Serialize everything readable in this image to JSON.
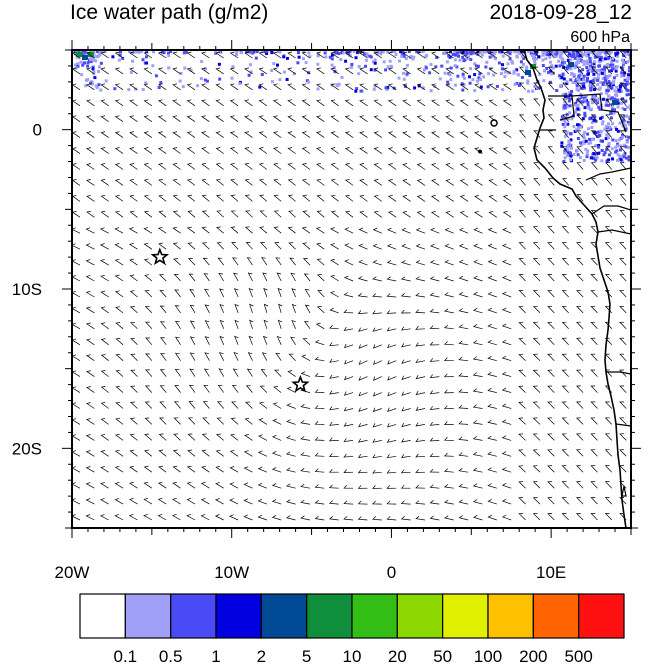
{
  "header": {
    "title": "Ice water path (g/m2)",
    "datetime": "2018-09-28_12",
    "level": "600 hPa"
  },
  "map": {
    "extent": {
      "lon": [
        -20,
        15
      ],
      "lat": [
        -25,
        5
      ]
    },
    "x_ticks": [
      {
        "lon": -20,
        "label": "20W"
      },
      {
        "lon": -10,
        "label": "10W"
      },
      {
        "lon": 0,
        "label": "0"
      },
      {
        "lon": 10,
        "label": "10E"
      }
    ],
    "y_ticks": [
      {
        "lat": 0,
        "label": "0"
      },
      {
        "lat": -10,
        "label": "10S"
      },
      {
        "lat": -20,
        "label": "20S"
      }
    ],
    "markers": [
      {
        "lon": -14.5,
        "lat": -8,
        "symbol": "star"
      },
      {
        "lon": -5.7,
        "lat": -16,
        "symbol": "star"
      }
    ]
  },
  "colorbar": {
    "colors": [
      "#ffffff",
      "#a0a0f8",
      "#4b4bf5",
      "#0000e0",
      "#004a96",
      "#0f8f3c",
      "#32be14",
      "#8cd700",
      "#e1f000",
      "#ffc000",
      "#ff6400",
      "#ff1010"
    ],
    "labels": [
      "0.1",
      "0.5",
      "1",
      "2",
      "5",
      "10",
      "20",
      "50",
      "100",
      "200",
      "500"
    ]
  },
  "colors": {
    "coast": "#000000",
    "wind": "#000000",
    "frame": "#000000"
  }
}
